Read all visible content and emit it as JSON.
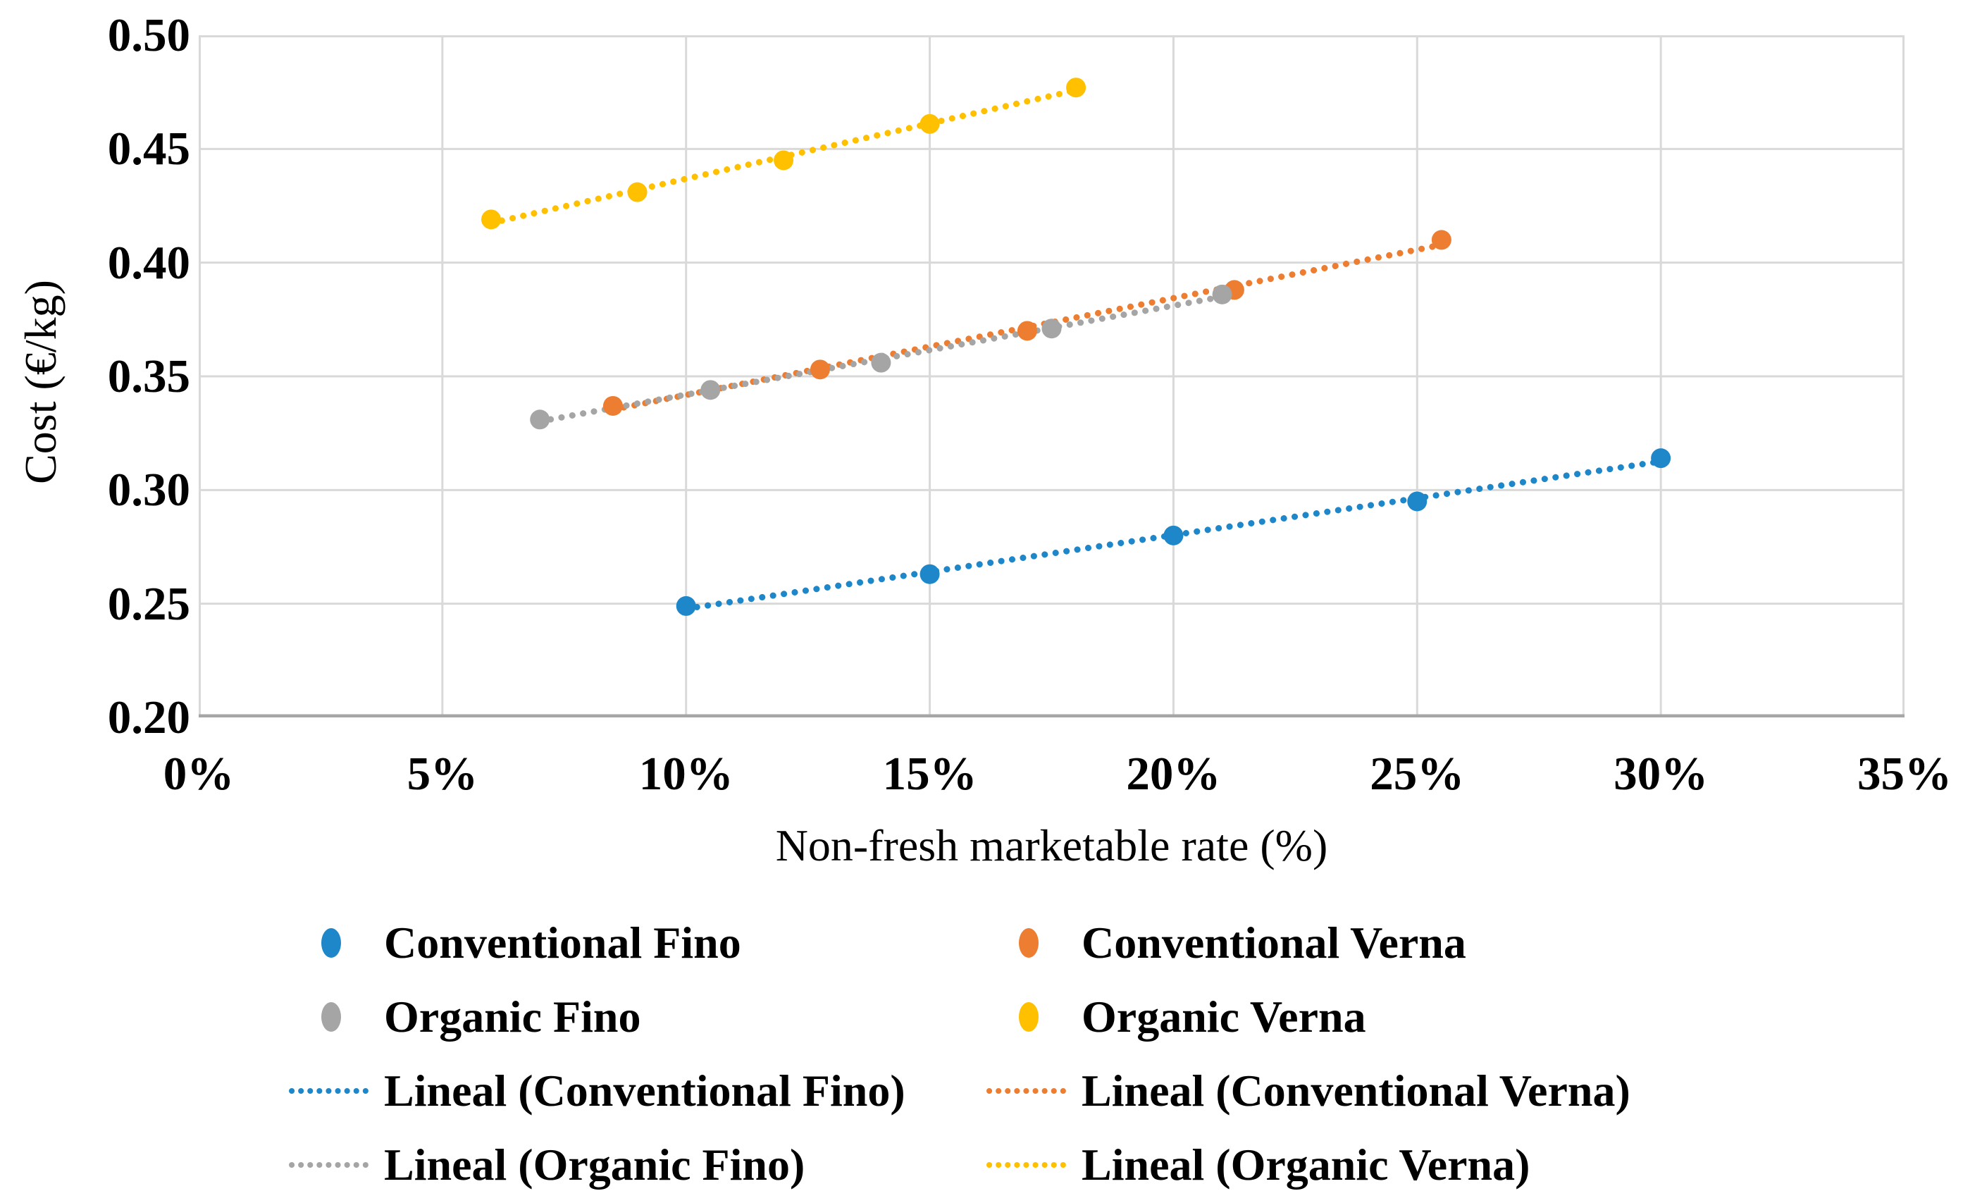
{
  "figure": {
    "background": "#ffffff",
    "text_color": "#000000"
  },
  "chart_data": {
    "type": "scatter",
    "title": "",
    "xlabel": "Non-fresh marketable rate (%)",
    "ylabel": "Cost (€/kg)",
    "xlim": [
      0,
      35
    ],
    "ylim": [
      0.2,
      0.5
    ],
    "grid": true,
    "gridline_color": "#d9d9d9",
    "axis_line_color": "#a6a6a6",
    "legend_position": "bottom",
    "x_ticks": [
      {
        "value": 0,
        "label": "0%"
      },
      {
        "value": 5,
        "label": "5%"
      },
      {
        "value": 10,
        "label": "10%"
      },
      {
        "value": 15,
        "label": "15%"
      },
      {
        "value": 20,
        "label": "20%"
      },
      {
        "value": 25,
        "label": "25%"
      },
      {
        "value": 30,
        "label": "30%"
      },
      {
        "value": 35,
        "label": "35%"
      }
    ],
    "y_ticks": [
      {
        "value": 0.5,
        "label": "0.50"
      },
      {
        "value": 0.45,
        "label": "0.45"
      },
      {
        "value": 0.4,
        "label": "0.40"
      },
      {
        "value": 0.35,
        "label": "0.35"
      },
      {
        "value": 0.3,
        "label": "0.30"
      },
      {
        "value": 0.25,
        "label": "0.25"
      },
      {
        "value": 0.2,
        "label": "0.20"
      }
    ],
    "series": [
      {
        "name": "Conventional Fino",
        "color": "#1e87c9",
        "marker": "circle",
        "trendline": {
          "type": "linear",
          "label": "Lineal (Conventional Fino)",
          "style": "dotted"
        },
        "x": [
          10,
          15,
          20,
          25,
          30
        ],
        "y": [
          0.249,
          0.263,
          0.28,
          0.295,
          0.314
        ]
      },
      {
        "name": "Conventional Verna",
        "color": "#ed7d31",
        "marker": "circle",
        "trendline": {
          "type": "linear",
          "label": "Lineal (Conventional Verna)",
          "style": "dotted"
        },
        "x": [
          8.5,
          12.75,
          17,
          21.25,
          25.5
        ],
        "y": [
          0.337,
          0.353,
          0.37,
          0.388,
          0.41
        ]
      },
      {
        "name": "Organic Fino",
        "color": "#a5a5a5",
        "marker": "circle",
        "trendline": {
          "type": "linear",
          "label": "Lineal (Organic Fino)",
          "style": "dotted"
        },
        "x": [
          7,
          10.5,
          14,
          17.5,
          21
        ],
        "y": [
          0.331,
          0.344,
          0.356,
          0.371,
          0.386
        ]
      },
      {
        "name": "Organic Verna",
        "color": "#ffc000",
        "marker": "circle",
        "trendline": {
          "type": "linear",
          "label": "Lineal (Organic Verna)",
          "style": "dotted"
        },
        "x": [
          6,
          9,
          12,
          15,
          18
        ],
        "y": [
          0.419,
          0.431,
          0.445,
          0.461,
          0.477
        ]
      }
    ]
  },
  "legend": {
    "items": [
      {
        "label": "Conventional Fino",
        "marker": "dot",
        "color": "#1e87c9"
      },
      {
        "label": "Conventional Verna",
        "marker": "dot",
        "color": "#ed7d31"
      },
      {
        "label": "Organic Fino",
        "marker": "dot",
        "color": "#a5a5a5"
      },
      {
        "label": "Organic Verna",
        "marker": "dot",
        "color": "#ffc000"
      },
      {
        "label": "Lineal (Conventional Fino)",
        "marker": "dotted-line",
        "color": "#1e87c9"
      },
      {
        "label": "Lineal (Conventional Verna)",
        "marker": "dotted-line",
        "color": "#ed7d31"
      },
      {
        "label": "Lineal (Organic Fino)",
        "marker": "dotted-line",
        "color": "#a5a5a5"
      },
      {
        "label": "Lineal (Organic Verna)",
        "marker": "dotted-line",
        "color": "#ffc000"
      }
    ]
  }
}
